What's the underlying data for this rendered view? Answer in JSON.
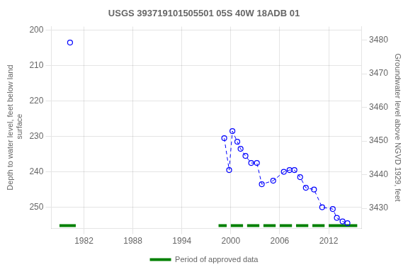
{
  "chart_data": {
    "type": "line",
    "title": "USGS 393719101505501 05S 40W 18ADB 01",
    "ylabel": "Depth to water level, feet below land\n surface",
    "y2label": "Groundwater level above NGVD 1929, feet",
    "xlim": [
      1978,
      2016
    ],
    "xticks": [
      1982,
      1988,
      1994,
      2000,
      2006,
      2012
    ],
    "ylim": [
      256,
      199
    ],
    "yticks": [
      200,
      210,
      220,
      230,
      240,
      250
    ],
    "y2lim": [
      3424,
      3484
    ],
    "y2ticks": [
      3480,
      3470,
      3460,
      3450,
      3440,
      3430
    ],
    "grid": true,
    "legend": "bottom",
    "series": [
      {
        "x": [
          1980.3
        ],
        "values": [
          203.5
        ],
        "color": "#0000ff",
        "marker": "open_circle",
        "line_style": "none"
      },
      {
        "x": [
          1999.2,
          1999.8,
          2000.2,
          2000.8,
          2001.2,
          2001.8,
          2002.5,
          2003.2,
          2003.8,
          2005.2,
          2006.5,
          2007.2,
          2007.8,
          2008.5,
          2009.2,
          2010.2,
          2011.2,
          2012.5,
          2013.0,
          2013.7,
          2014.3
        ],
        "values": [
          230.5,
          239.5,
          228.5,
          231.5,
          233.5,
          235.5,
          237.5,
          237.5,
          243.5,
          242.5,
          240.0,
          239.5,
          239.5,
          241.5,
          244.5,
          245.0,
          250.0,
          250.5,
          253.0,
          254.0,
          254.5
        ],
        "color": "#0000ff",
        "marker": "open_circle",
        "line_style": "dashed"
      },
      {
        "name": "Period of approved data",
        "type": "interval",
        "color": "#008000",
        "ranges": [
          [
            1979.0,
            1981.0
          ],
          [
            1998.5,
            1999.5
          ],
          [
            2000.0,
            2001.5
          ],
          [
            2002.0,
            2003.5
          ],
          [
            2004.0,
            2005.5
          ],
          [
            2006.0,
            2007.5
          ],
          [
            2008.0,
            2009.5
          ],
          [
            2010.0,
            2011.5
          ],
          [
            2012.0,
            2015.5
          ]
        ]
      }
    ]
  }
}
